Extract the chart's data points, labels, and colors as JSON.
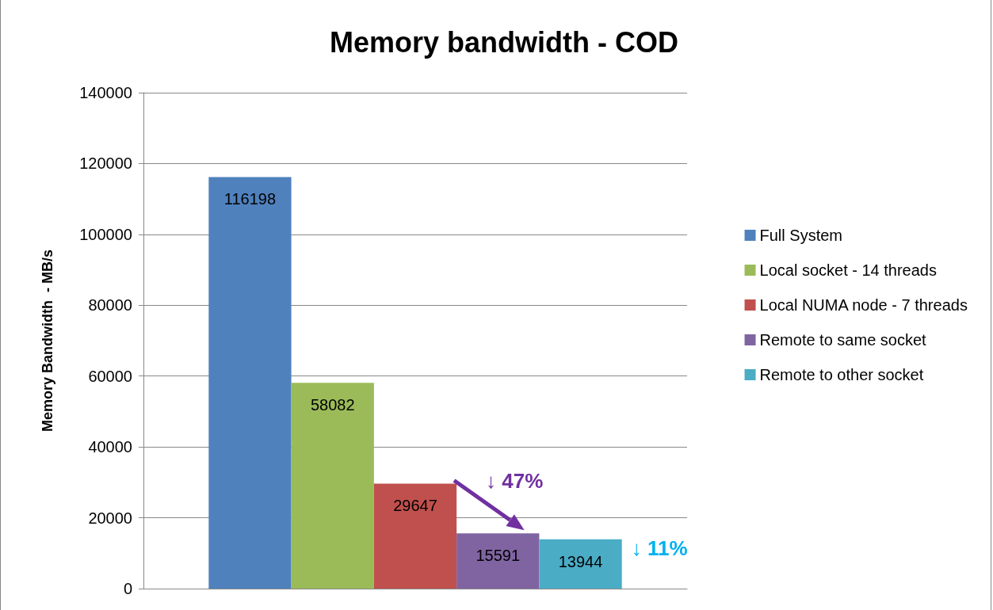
{
  "chart_data": {
    "type": "bar",
    "title": "Memory bandwidth - COD",
    "ylabel": "Memory Bandwidth  - MB/s",
    "categories": [
      null
    ],
    "series": [
      {
        "name": "Full System",
        "color": "#4f81bd",
        "values": [
          116198
        ]
      },
      {
        "name": "Local socket - 14 threads",
        "color": "#9bbb59",
        "values": [
          58082
        ]
      },
      {
        "name": "Local NUMA node - 7 threads",
        "color": "#c0504d",
        "values": [
          29647
        ]
      },
      {
        "name": "Remote to same socket",
        "color": "#8064a2",
        "values": [
          15591
        ]
      },
      {
        "name": "Remote to other socket",
        "color": "#4bacc6",
        "values": [
          13944
        ]
      }
    ],
    "ylim": [
      0,
      140000
    ],
    "yticks": [
      0,
      20000,
      40000,
      60000,
      80000,
      100000,
      120000,
      140000
    ],
    "grid": "y",
    "legend": "right",
    "data_labels": true,
    "annotations": [
      "↓ 47%",
      "↓ 11%"
    ]
  }
}
